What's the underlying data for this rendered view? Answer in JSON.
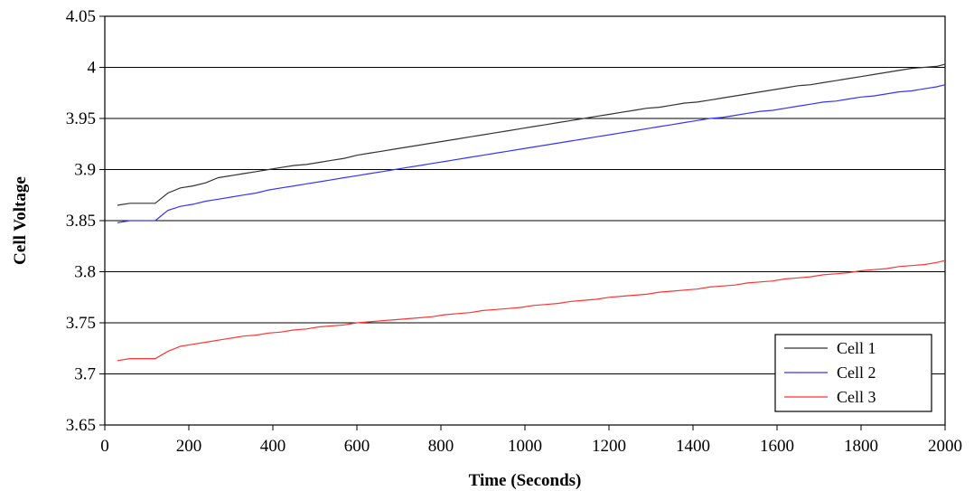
{
  "chart_data": {
    "type": "line",
    "title": "",
    "xlabel": "Time (Seconds)",
    "ylabel": "Cell Voltage",
    "xlim": [
      0,
      2000
    ],
    "ylim": [
      3.65,
      4.05
    ],
    "x_ticks": [
      "0",
      "200",
      "400",
      "600",
      "800",
      "1000",
      "1200",
      "1400",
      "1600",
      "1800",
      "2000"
    ],
    "y_ticks": [
      "3.65",
      "3.7",
      "3.75",
      "3.8",
      "3.85",
      "3.9",
      "3.95",
      "4",
      "4.05"
    ],
    "grid": "horizontal",
    "legend_position": "bottom-right",
    "series": [
      {
        "name": "Cell 1",
        "color": "#333333",
        "x": [
          30,
          60,
          90,
          120,
          150,
          180,
          210,
          240,
          270,
          300,
          330,
          360,
          390,
          420,
          450,
          480,
          510,
          540,
          570,
          600,
          630,
          660,
          690,
          720,
          750,
          780,
          810,
          840,
          870,
          900,
          930,
          960,
          990,
          1020,
          1050,
          1080,
          1110,
          1140,
          1170,
          1200,
          1230,
          1260,
          1290,
          1320,
          1350,
          1380,
          1410,
          1440,
          1470,
          1500,
          1530,
          1560,
          1590,
          1620,
          1650,
          1680,
          1710,
          1740,
          1770,
          1800,
          1830,
          1860,
          1890,
          1920,
          1950,
          1980,
          2000
        ],
        "y": [
          3.865,
          3.867,
          3.867,
          3.867,
          3.877,
          3.882,
          3.884,
          3.887,
          3.892,
          3.894,
          3.896,
          3.898,
          3.9,
          3.902,
          3.904,
          3.905,
          3.907,
          3.909,
          3.911,
          3.914,
          3.916,
          3.918,
          3.92,
          3.922,
          3.924,
          3.926,
          3.928,
          3.93,
          3.932,
          3.934,
          3.936,
          3.938,
          3.94,
          3.942,
          3.944,
          3.946,
          3.948,
          3.95,
          3.952,
          3.954,
          3.956,
          3.958,
          3.96,
          3.961,
          3.963,
          3.965,
          3.966,
          3.968,
          3.97,
          3.972,
          3.974,
          3.976,
          3.978,
          3.98,
          3.982,
          3.983,
          3.985,
          3.987,
          3.989,
          3.991,
          3.993,
          3.995,
          3.997,
          3.999,
          4.0,
          4.001,
          4.003
        ]
      },
      {
        "name": "Cell 2",
        "color": "#3333ff",
        "x": [
          30,
          60,
          90,
          120,
          150,
          180,
          210,
          240,
          270,
          300,
          330,
          360,
          390,
          420,
          450,
          480,
          510,
          540,
          570,
          600,
          630,
          660,
          690,
          720,
          750,
          780,
          810,
          840,
          870,
          900,
          930,
          960,
          990,
          1020,
          1050,
          1080,
          1110,
          1140,
          1170,
          1200,
          1230,
          1260,
          1290,
          1320,
          1350,
          1380,
          1410,
          1440,
          1470,
          1500,
          1530,
          1560,
          1590,
          1620,
          1650,
          1680,
          1710,
          1740,
          1770,
          1800,
          1830,
          1860,
          1890,
          1920,
          1950,
          1980,
          2000
        ],
        "y": [
          3.848,
          3.85,
          3.85,
          3.85,
          3.86,
          3.864,
          3.866,
          3.869,
          3.871,
          3.873,
          3.875,
          3.877,
          3.88,
          3.882,
          3.884,
          3.886,
          3.888,
          3.89,
          3.892,
          3.894,
          3.896,
          3.898,
          3.9,
          3.902,
          3.904,
          3.906,
          3.908,
          3.91,
          3.912,
          3.914,
          3.916,
          3.918,
          3.92,
          3.922,
          3.924,
          3.926,
          3.928,
          3.93,
          3.932,
          3.934,
          3.936,
          3.938,
          3.94,
          3.942,
          3.944,
          3.946,
          3.948,
          3.95,
          3.951,
          3.953,
          3.955,
          3.957,
          3.958,
          3.96,
          3.962,
          3.964,
          3.966,
          3.967,
          3.969,
          3.971,
          3.972,
          3.974,
          3.976,
          3.977,
          3.979,
          3.981,
          3.983
        ]
      },
      {
        "name": "Cell 3",
        "color": "#ff3333",
        "x": [
          30,
          60,
          90,
          120,
          150,
          180,
          210,
          240,
          270,
          300,
          330,
          360,
          390,
          420,
          450,
          480,
          510,
          540,
          570,
          600,
          630,
          660,
          690,
          720,
          750,
          780,
          810,
          840,
          870,
          900,
          930,
          960,
          990,
          1020,
          1050,
          1080,
          1110,
          1140,
          1170,
          1200,
          1230,
          1260,
          1290,
          1320,
          1350,
          1380,
          1410,
          1440,
          1470,
          1500,
          1530,
          1560,
          1590,
          1620,
          1650,
          1680,
          1710,
          1740,
          1770,
          1800,
          1830,
          1860,
          1890,
          1920,
          1950,
          1980,
          2000
        ],
        "y": [
          3.713,
          3.715,
          3.715,
          3.715,
          3.722,
          3.727,
          3.729,
          3.731,
          3.733,
          3.735,
          3.737,
          3.738,
          3.74,
          3.741,
          3.743,
          3.744,
          3.746,
          3.747,
          3.748,
          3.75,
          3.751,
          3.752,
          3.753,
          3.754,
          3.755,
          3.756,
          3.758,
          3.759,
          3.76,
          3.762,
          3.763,
          3.764,
          3.765,
          3.767,
          3.768,
          3.769,
          3.771,
          3.772,
          3.773,
          3.775,
          3.776,
          3.777,
          3.778,
          3.78,
          3.781,
          3.782,
          3.783,
          3.785,
          3.786,
          3.787,
          3.789,
          3.79,
          3.791,
          3.793,
          3.794,
          3.795,
          3.797,
          3.798,
          3.799,
          3.801,
          3.802,
          3.803,
          3.805,
          3.806,
          3.807,
          3.809,
          3.811
        ]
      }
    ]
  }
}
